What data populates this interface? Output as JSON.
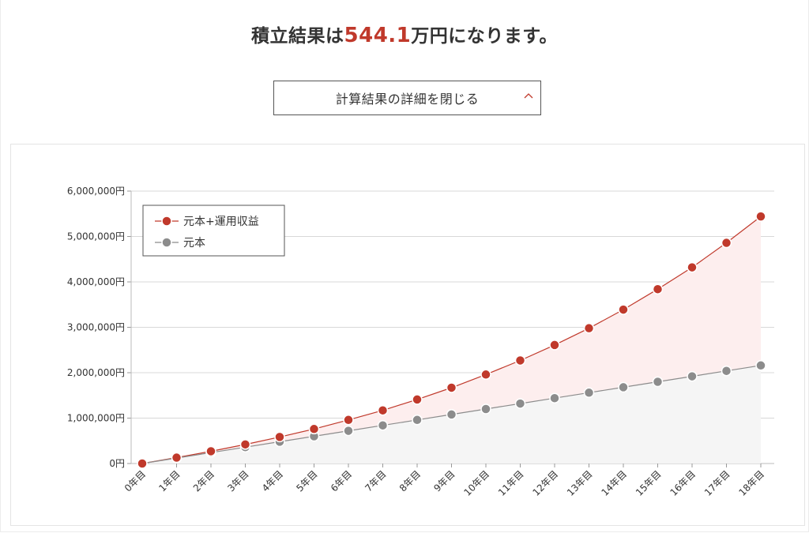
{
  "headline": {
    "prefix": "積立結果は",
    "amount": "544.1",
    "suffix": "万円になります。"
  },
  "toggle": {
    "label": "計算結果の詳細を閉じる",
    "icon": "chevron-up-icon"
  },
  "colors": {
    "accent": "#c0392b",
    "principal": "#8c8c8c",
    "total_fill": "#fdeeee",
    "principal_fill": "#f5f5f5"
  },
  "chart_data": {
    "type": "line",
    "x": [
      "0年目",
      "1年目",
      "2年目",
      "3年目",
      "4年目",
      "5年目",
      "6年目",
      "7年目",
      "8年目",
      "9年目",
      "10年目",
      "11年目",
      "12年目",
      "13年目",
      "14年目",
      "15年目",
      "16年目",
      "17年目",
      "18年目"
    ],
    "ylim": [
      0,
      6000000
    ],
    "yticks": [
      0,
      1000000,
      2000000,
      3000000,
      4000000,
      5000000,
      6000000
    ],
    "ytick_labels": [
      "0円",
      "1,000,000円",
      "2,000,000円",
      "3,000,000円",
      "4,000,000円",
      "5,000,000円",
      "6,000,000円"
    ],
    "grid": true,
    "legend_position": "top-left",
    "series": [
      {
        "name": "元本+運用収益",
        "color": "#c0392b",
        "values": [
          0,
          130000,
          270000,
          420000,
          585000,
          760000,
          960000,
          1170000,
          1410000,
          1670000,
          1960000,
          2270000,
          2610000,
          2980000,
          3390000,
          3840000,
          4320000,
          4860000,
          5441000
        ]
      },
      {
        "name": "元本",
        "color": "#8c8c8c",
        "values": [
          0,
          120000,
          240000,
          360000,
          480000,
          600000,
          720000,
          840000,
          960000,
          1080000,
          1200000,
          1320000,
          1440000,
          1560000,
          1680000,
          1800000,
          1920000,
          2040000,
          2160000
        ]
      }
    ]
  }
}
